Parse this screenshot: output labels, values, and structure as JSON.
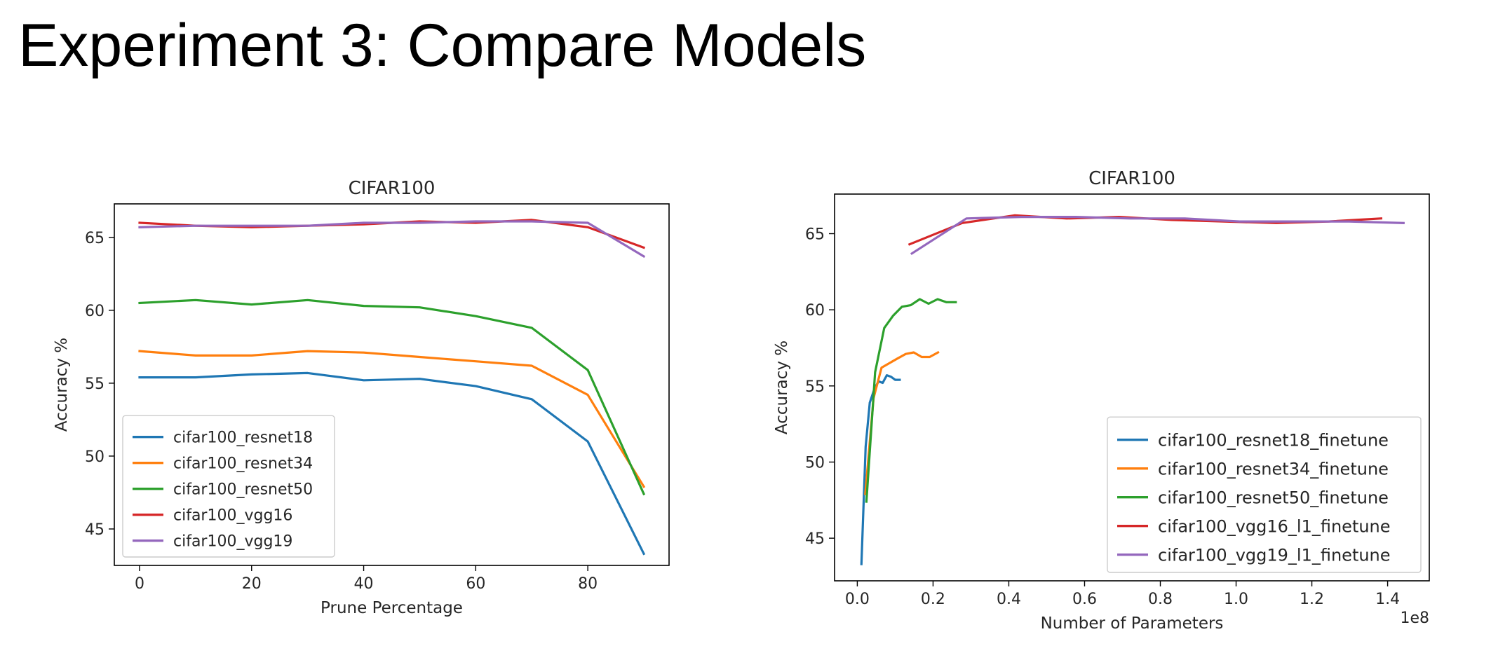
{
  "slide": {
    "title": "Experiment 3: Compare Models"
  },
  "colors": {
    "blue": "#1f77b4",
    "orange": "#ff7f0e",
    "green": "#2ca02c",
    "red": "#d62728",
    "purple": "#9467bd"
  },
  "chart_data": [
    {
      "type": "line",
      "title": "CIFAR100",
      "xlabel": "Prune Percentage",
      "ylabel": "Accuracy %",
      "xlim": [
        -4.5,
        94.5
      ],
      "ylim": [
        42.5,
        67.3
      ],
      "xticks": [
        0,
        20,
        40,
        60,
        80
      ],
      "xtick_labels": [
        "0",
        "20",
        "40",
        "60",
        "80"
      ],
      "yticks": [
        45,
        50,
        55,
        60,
        65
      ],
      "ytick_labels": [
        "45",
        "50",
        "55",
        "60",
        "65"
      ],
      "offset_label": "",
      "legend_position": "lower-left",
      "series": [
        {
          "name": "cifar100_resnet18",
          "color": "#1f77b4",
          "x": [
            0,
            10,
            20,
            30,
            40,
            50,
            60,
            70,
            80,
            90
          ],
          "y": [
            55.4,
            55.4,
            55.6,
            55.7,
            55.2,
            55.3,
            54.8,
            53.9,
            51.0,
            43.3
          ]
        },
        {
          "name": "cifar100_resnet34",
          "color": "#ff7f0e",
          "x": [
            0,
            10,
            20,
            30,
            40,
            50,
            60,
            70,
            80,
            90
          ],
          "y": [
            57.2,
            56.9,
            56.9,
            57.2,
            57.1,
            56.8,
            56.5,
            56.2,
            54.2,
            47.9
          ]
        },
        {
          "name": "cifar100_resnet50",
          "color": "#2ca02c",
          "x": [
            0,
            10,
            20,
            30,
            40,
            50,
            60,
            70,
            80,
            90
          ],
          "y": [
            60.5,
            60.7,
            60.4,
            60.7,
            60.3,
            60.2,
            59.6,
            58.8,
            55.9,
            47.4
          ]
        },
        {
          "name": "cifar100_vgg16",
          "color": "#d62728",
          "x": [
            0,
            10,
            20,
            30,
            40,
            50,
            60,
            70,
            80,
            90
          ],
          "y": [
            66.0,
            65.8,
            65.7,
            65.8,
            65.9,
            66.1,
            66.0,
            66.2,
            65.7,
            64.3
          ]
        },
        {
          "name": "cifar100_vgg19",
          "color": "#9467bd",
          "x": [
            0,
            10,
            20,
            30,
            40,
            50,
            60,
            70,
            80,
            90
          ],
          "y": [
            65.7,
            65.8,
            65.8,
            65.8,
            66.0,
            66.0,
            66.1,
            66.1,
            66.0,
            63.7
          ]
        }
      ]
    },
    {
      "type": "line",
      "title": "CIFAR100",
      "xlabel": "Number of Parameters",
      "ylabel": "Accuracy %",
      "xlim": [
        -6000000.0,
        151000000.0
      ],
      "ylim": [
        42.2,
        67.6
      ],
      "xticks": [
        0,
        20000000,
        40000000,
        60000000,
        80000000,
        100000000,
        120000000,
        140000000
      ],
      "xtick_labels": [
        "0.0",
        "0.2",
        "0.4",
        "0.6",
        "0.8",
        "1.0",
        "1.2",
        "1.4"
      ],
      "yticks": [
        45,
        50,
        55,
        60,
        65
      ],
      "ytick_labels": [
        "45",
        "50",
        "55",
        "60",
        "65"
      ],
      "offset_label": "1e8",
      "legend_position": "lower-right",
      "series": [
        {
          "name": "cifar100_resnet18_finetune",
          "color": "#1f77b4",
          "x": [
            1100000,
            2200000,
            3300000,
            4500000,
            5600000,
            6700000,
            7800000,
            8900000,
            10000000,
            11200000
          ],
          "y": [
            43.3,
            51.0,
            53.9,
            54.8,
            55.3,
            55.2,
            55.7,
            55.6,
            55.4,
            55.4
          ]
        },
        {
          "name": "cifar100_resnet34_finetune",
          "color": "#ff7f0e",
          "x": [
            2100000,
            4300000,
            6400000,
            8500000,
            10600000,
            12800000,
            14900000,
            17000000,
            19100000,
            21300000
          ],
          "y": [
            47.9,
            54.2,
            56.2,
            56.5,
            56.8,
            57.1,
            57.2,
            56.9,
            56.9,
            57.2
          ]
        },
        {
          "name": "cifar100_resnet50_finetune",
          "color": "#2ca02c",
          "x": [
            2400000,
            4700000,
            7100000,
            9400000,
            11800000,
            14100000,
            16500000,
            18800000,
            21200000,
            23500000,
            26000000
          ],
          "y": [
            47.4,
            55.9,
            58.8,
            59.6,
            60.2,
            60.3,
            60.7,
            60.4,
            60.7,
            60.5,
            60.5
          ]
        },
        {
          "name": "cifar100_vgg16_l1_finetune",
          "color": "#d62728",
          "x": [
            13800000,
            27700000,
            41500000,
            55300000,
            69100000,
            83000000,
            96800000,
            110600000,
            124400000,
            138300000
          ],
          "y": [
            64.3,
            65.7,
            66.2,
            66.0,
            66.1,
            65.9,
            65.8,
            65.7,
            65.8,
            66.0
          ]
        },
        {
          "name": "cifar100_vgg19_l1_finetune",
          "color": "#9467bd",
          "x": [
            14400000,
            28800000,
            43300000,
            57700000,
            72100000,
            86500000,
            100900000,
            115400000,
            129800000,
            144200000
          ],
          "y": [
            63.7,
            66.0,
            66.1,
            66.1,
            66.0,
            66.0,
            65.8,
            65.8,
            65.8,
            65.7
          ]
        }
      ]
    }
  ]
}
